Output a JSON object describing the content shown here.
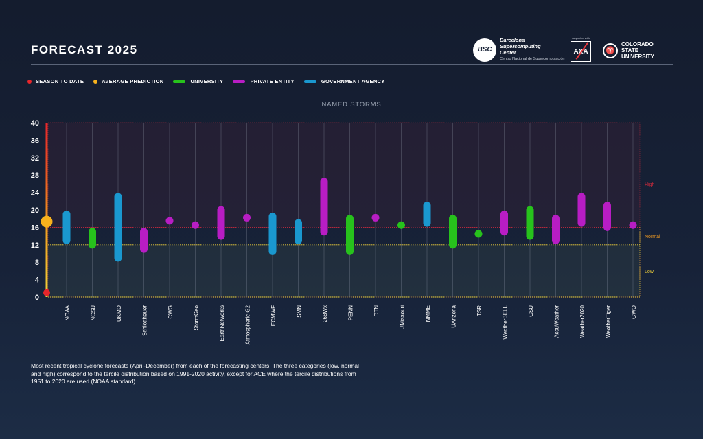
{
  "header": {
    "title": "FORECAST 2025",
    "bsc_badge": "BSC",
    "bsc_name": "Barcelona Supercomputing Center",
    "bsc_sub": "Centro Nacional de Supercomputación",
    "axa_top": "supported with",
    "axa_label": "AXA",
    "csu_name": "COLORADO STATE UNIVERSITY"
  },
  "legend": {
    "season_to_date": "SEASON TO DATE",
    "average_prediction": "AVERAGE PREDICTION",
    "university": "UNIVERSITY",
    "private_entity": "PRIVATE ENTITY",
    "government_agency": "GOVERNMENT AGENCY"
  },
  "colors": {
    "season_to_date": "#e8262b",
    "average_prediction": "#f7b21d",
    "university": "#27c21c",
    "private_entity": "#b81dc4",
    "government_agency": "#1a98cf",
    "high_zone": "#ca2a3c",
    "normal_zone": "#ef9a22",
    "low_zone": "#f2d23a"
  },
  "caption": "Most recent tropical cyclone forecasts (April-December) from each of the forecasting centers. The three categories (low, normal and high) correspond to the tercile distribution based on 1991-2020 activity, except for ACE where the tercile distributions from 1951 to 2020 are used (NOAA standard).",
  "chart_data": {
    "type": "range-bar",
    "title": "NAMED STORMS",
    "ylim": [
      0,
      40
    ],
    "yticks": [
      0,
      4,
      8,
      12,
      16,
      20,
      24,
      28,
      32,
      36,
      40
    ],
    "season_to_date": 1,
    "average_prediction": 17.3,
    "tercile_bounds": {
      "normal_low": 12,
      "normal_high": 16
    },
    "zone_labels": {
      "high": "High",
      "normal": "Normal",
      "low": "Low"
    },
    "forecasts": [
      {
        "name": "NOAA",
        "type": "government_agency",
        "min": 13,
        "max": 19
      },
      {
        "name": "NCSU",
        "type": "university",
        "min": 12,
        "max": 15
      },
      {
        "name": "UKMO",
        "type": "government_agency",
        "min": 9,
        "max": 23
      },
      {
        "name": "Schlottheuer",
        "type": "private_entity",
        "min": 11,
        "max": 15
      },
      {
        "name": "CWG",
        "type": "private_entity",
        "min": 17.5,
        "max": 17.5
      },
      {
        "name": "StormGeo",
        "type": "private_entity",
        "min": 16.5,
        "max": 16.5
      },
      {
        "name": "EarthNetworks",
        "type": "private_entity",
        "min": 14,
        "max": 20
      },
      {
        "name": "Atmospheric G2",
        "type": "private_entity",
        "min": 18.2,
        "max": 18.2
      },
      {
        "name": "ECMWF",
        "type": "government_agency",
        "min": 10.5,
        "max": 18.5
      },
      {
        "name": "SMN",
        "type": "government_agency",
        "min": 13,
        "max": 17
      },
      {
        "name": "268Wx",
        "type": "private_entity",
        "min": 15,
        "max": 26.5
      },
      {
        "name": "PENN",
        "type": "university",
        "min": 10.5,
        "max": 18
      },
      {
        "name": "DTN",
        "type": "private_entity",
        "min": 18.2,
        "max": 18.2
      },
      {
        "name": "UMissouri",
        "type": "university",
        "min": 16.5,
        "max": 16.5
      },
      {
        "name": "NMME",
        "type": "government_agency",
        "min": 17,
        "max": 21
      },
      {
        "name": "UArizona",
        "type": "university",
        "min": 12,
        "max": 18
      },
      {
        "name": "TSR",
        "type": "university",
        "min": 14.5,
        "max": 14.5
      },
      {
        "name": "WeatherBELL",
        "type": "private_entity",
        "min": 15,
        "max": 19
      },
      {
        "name": "CSU",
        "type": "university",
        "min": 14,
        "max": 20
      },
      {
        "name": "AccuWeather",
        "type": "private_entity",
        "min": 13,
        "max": 18
      },
      {
        "name": "Weather2020",
        "type": "private_entity",
        "min": 17,
        "max": 23
      },
      {
        "name": "WeatherTiger",
        "type": "private_entity",
        "min": 16,
        "max": 21
      },
      {
        "name": "GWO",
        "type": "private_entity",
        "min": 16.5,
        "max": 16.5
      }
    ]
  }
}
